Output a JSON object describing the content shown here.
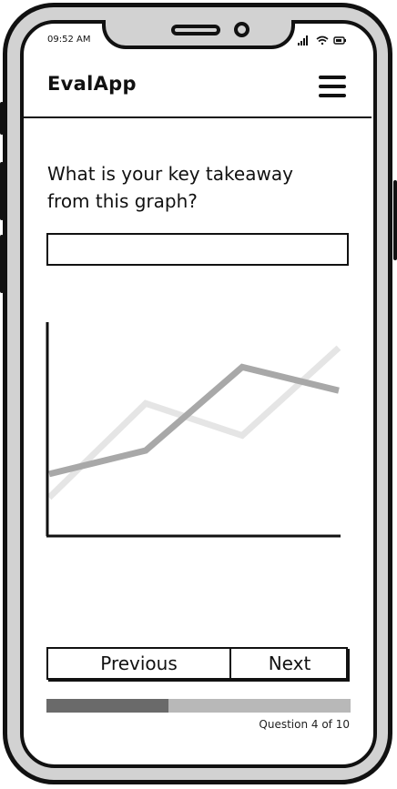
{
  "status_bar": {
    "time": "09:52 AM"
  },
  "header": {
    "title": "EvalApp",
    "menu_icon": "hamburger-menu-icon"
  },
  "question": {
    "text": "What is your key takeaway from this graph?",
    "answer_value": "",
    "answer_placeholder": ""
  },
  "chart_data": {
    "type": "line",
    "x": [
      0,
      1,
      2,
      3
    ],
    "series": [
      {
        "values": [
          1.8,
          6.2,
          4.7,
          8.8
        ],
        "color": "#e5e5e5"
      },
      {
        "values": [
          2.9,
          4.0,
          7.9,
          6.8
        ],
        "color": "#a8a8a8"
      }
    ],
    "xlim": [
      0,
      3
    ],
    "ylim": [
      0,
      10
    ],
    "title": "",
    "xlabel": "",
    "ylabel": "",
    "grid": false
  },
  "navigation": {
    "previous_label": "Previous",
    "next_label": "Next"
  },
  "progress": {
    "fraction": 0.4,
    "label": "Question 4 of 10"
  },
  "colors": {
    "frame": "#111111",
    "bezel": "#d2d2d2",
    "progress_fill": "#6a6a6a",
    "progress_track": "#b8b8b8"
  }
}
